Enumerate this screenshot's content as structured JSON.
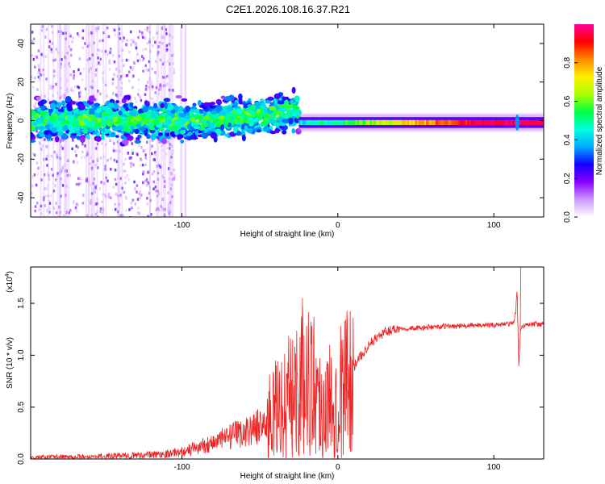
{
  "title": "C2E1.2026.108.16.37.R21",
  "chart_data": [
    {
      "type": "heatmap",
      "name": "spectrogram",
      "xlabel": "Height of straight line (km)",
      "ylabel": "Frequency (Hz)",
      "xlim": [
        -197,
        132
      ],
      "ylim": [
        -50,
        50
      ],
      "x_ticks": [
        -100,
        0,
        100
      ],
      "x_tick_labels": [
        "-100",
        "0",
        "100"
      ],
      "y_ticks": [
        -40,
        -20,
        0,
        20,
        40
      ],
      "y_tick_labels": [
        "-40",
        "-20",
        "0",
        "20",
        "40"
      ],
      "colorbar": {
        "label": "Normalized spectral amplitude",
        "range": [
          0,
          1
        ],
        "ticks": [
          0.0,
          0.2,
          0.4,
          0.6,
          0.8
        ],
        "tick_labels": [
          "0.0",
          "0.2",
          "0.4",
          "0.6",
          "0.8"
        ],
        "colors": [
          "#ffffff",
          "#cc99ff",
          "#8800ff",
          "#1100ff",
          "#00aaff",
          "#00ffdd",
          "#00ff44",
          "#aaff00",
          "#ffee00",
          "#ff8800",
          "#ff0000",
          "#ff0099"
        ]
      },
      "description_points": {
        "noise_region_x": [
          -197,
          -105
        ],
        "turbulent_band_x": [
          -197,
          -25
        ],
        "turbulent_band_freq_halfwidth": 8,
        "stable_line_start_x": -25,
        "stable_line_freq": -1,
        "spike_x": 115
      }
    },
    {
      "type": "line",
      "name": "snr",
      "xlabel": "Height of straight line (km)",
      "ylabel": "SNR (10 * v/v)",
      "y_scale_label": "(x10",
      "y_scale_exponent": "4",
      "xlim": [
        -197,
        132
      ],
      "ylim": [
        0,
        1.85
      ],
      "x_ticks": [
        -100,
        0,
        100
      ],
      "x_tick_labels": [
        "-100",
        "0",
        "100"
      ],
      "y_ticks": [
        0.0,
        0.5,
        1.0,
        1.5
      ],
      "y_tick_labels": [
        "0.0",
        "0.5",
        "1.0",
        "1.5"
      ],
      "color": "#ee2222",
      "series": [
        {
          "name": "SNR",
          "x": [
            -197,
            -180,
            -160,
            -140,
            -120,
            -110,
            -100,
            -90,
            -80,
            -70,
            -60,
            -50,
            -45,
            -40,
            -35,
            -30,
            -25,
            -20,
            -15,
            -10,
            -5,
            0,
            5,
            10,
            15,
            20,
            25,
            30,
            35,
            40,
            50,
            60,
            70,
            80,
            90,
            100,
            105,
            110,
            113,
            114,
            115,
            116,
            117,
            118,
            120,
            125,
            132
          ],
          "values": [
            0.01,
            0.02,
            0.02,
            0.03,
            0.04,
            0.05,
            0.07,
            0.11,
            0.16,
            0.21,
            0.26,
            0.32,
            0.38,
            0.44,
            0.52,
            0.62,
            0.7,
            0.8,
            0.72,
            0.5,
            0.55,
            0.62,
            0.75,
            0.88,
            1.0,
            1.1,
            1.17,
            1.22,
            1.25,
            1.26,
            1.26,
            1.27,
            1.28,
            1.28,
            1.29,
            1.29,
            1.3,
            1.3,
            1.32,
            1.42,
            1.62,
            0.9,
            1.2,
            1.28,
            1.29,
            1.3,
            1.3
          ]
        }
      ],
      "annotations": [
        {
          "x": -23,
          "y": 1.55,
          "text": ""
        },
        {
          "x": 117,
          "y": 1.85,
          "text": ""
        }
      ]
    }
  ]
}
